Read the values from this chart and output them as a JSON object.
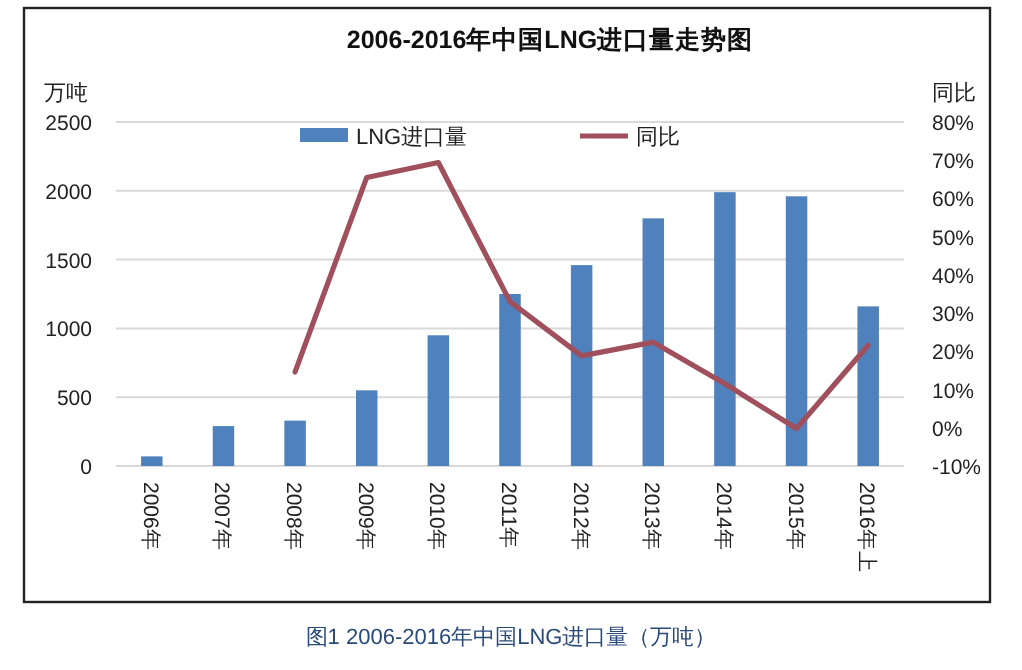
{
  "chart_data": {
    "type": "bar",
    "title": "2006-2016年中国LNG进口量走势图",
    "ylabel": "万吨",
    "y2label": "同比",
    "annotations": [
      "图1  2006-2016年中国LNG进口量（万吨）"
    ],
    "categories": [
      "2006年",
      "2007年",
      "2008年",
      "2009年",
      "2010年",
      "2011年",
      "2012年",
      "2013年",
      "2014年",
      "2015年",
      "2016年上"
    ],
    "series": [
      {
        "name": "LNG进口量",
        "color": "#4f81bd",
        "values": [
          70,
          290,
          330,
          550,
          950,
          1250,
          1460,
          1800,
          1990,
          1960,
          1160
        ]
      },
      {
        "name": "同比",
        "type": "line",
        "axis": "y2",
        "color": "#a0505c",
        "values": [
          null,
          null,
          14.6,
          65.5,
          69.4,
          33,
          18.8,
          22.4,
          11.5,
          -0.2,
          21.6
        ]
      }
    ],
    "ylim": [
      0,
      2500
    ],
    "yticks": [
      0,
      500,
      1000,
      1500,
      2000,
      2500
    ],
    "y2lim": [
      -10,
      80
    ],
    "y2ticks": [
      {
        "value": -10,
        "label": "-10%"
      },
      {
        "value": 0,
        "label": "0%"
      },
      {
        "value": 10,
        "label": "10%"
      },
      {
        "value": 20,
        "label": "20%"
      },
      {
        "value": 30,
        "label": "30%"
      },
      {
        "value": 40,
        "label": "40%"
      },
      {
        "value": 50,
        "label": "50%"
      },
      {
        "value": 60,
        "label": "60%"
      },
      {
        "value": 70,
        "label": "70%"
      },
      {
        "value": 80,
        "label": "80%"
      }
    ],
    "grid": "y",
    "legend": "top",
    "line_style": "solid",
    "marker": "none"
  }
}
